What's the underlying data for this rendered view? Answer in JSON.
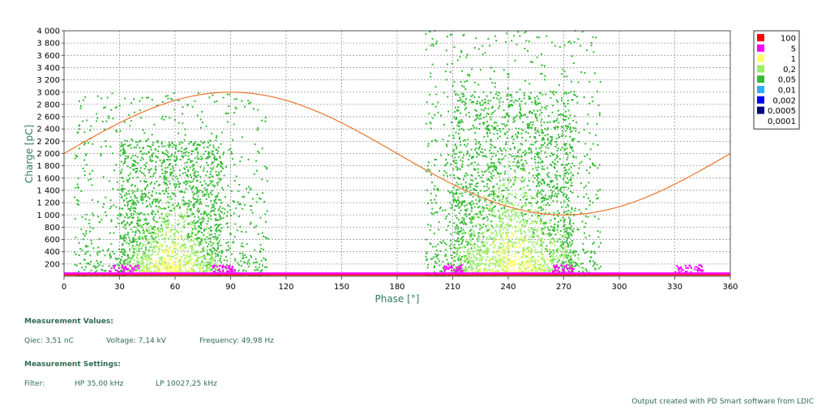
{
  "chart_data": {
    "type": "heatmap",
    "title": "",
    "xlabel": "Phase [°]",
    "ylabel": "Charge [pC]",
    "xlim": [
      0,
      360
    ],
    "ylim": [
      0,
      4000
    ],
    "x_ticks": [
      "0",
      "30",
      "60",
      "90",
      "120",
      "150",
      "180",
      "210",
      "240",
      "270",
      "300",
      "330",
      "360"
    ],
    "y_ticks": [
      "200",
      "400",
      "600",
      "800",
      "1 000",
      "1 200",
      "1 400",
      "1 600",
      "1 800",
      "2 000",
      "2 200",
      "2 400",
      "2 600",
      "2 800",
      "3 000",
      "3 200",
      "3 400",
      "3 600",
      "3 800",
      "4 000"
    ],
    "grid": true,
    "legend_position": "right",
    "legend": [
      {
        "label": "100",
        "color": "#ff0000"
      },
      {
        "label": "5",
        "color": "#ff00ff"
      },
      {
        "label": "1",
        "color": "#ffff66"
      },
      {
        "label": "0,2",
        "color": "#99ee66"
      },
      {
        "label": "0,05",
        "color": "#33bb33"
      },
      {
        "label": "0,01",
        "color": "#33aaff"
      },
      {
        "label": "0,002",
        "color": "#0000ff"
      },
      {
        "label": "0,0005",
        "color": "#000080"
      },
      {
        "label": "0,0001",
        "color": "#ffffff"
      }
    ],
    "reference_sine": {
      "color": "#e8742a",
      "offset": 2000,
      "amplitude": 1000,
      "peak_phase": 90
    },
    "clusters": [
      {
        "phase_range": [
          5,
          110
        ],
        "charge_max": 3000,
        "dense_phase_range": [
          30,
          85
        ],
        "dense_charge_max": 2200
      },
      {
        "phase_range": [
          195,
          290
        ],
        "charge_max": 4000,
        "dense_phase_range": [
          210,
          275
        ],
        "dense_charge_max": 3000
      }
    ],
    "baseline_charge": 50
  },
  "measurement": {
    "values_title": "Measurement Values:",
    "qiec": "Qiec: 3,51 nC",
    "voltage": "Voltage: 7,14 kV",
    "frequency": "Frequency: 49,98 Hz",
    "settings_title": "Measurement Settings:",
    "filter_label": "Filter:",
    "hp": "HP 35,00 kHz",
    "lp": "LP 10027,25 kHz"
  },
  "footer": "Output created with PD Smart software from LDIC"
}
